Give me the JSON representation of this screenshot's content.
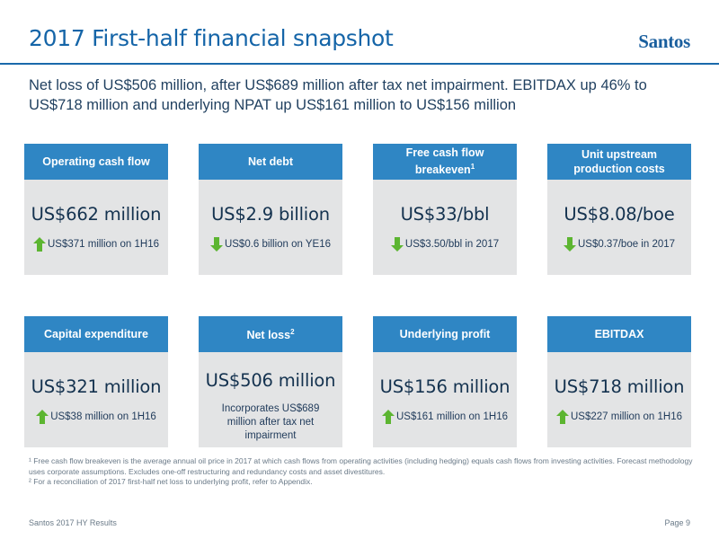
{
  "header": {
    "title": "2017 First-half financial snapshot",
    "logo_text": "Santos"
  },
  "subtitle": "Net loss of US$506 million, after US$689 million after tax net impairment. EBITDAX up 46% to US$718 million and underlying NPAT up US$161 million to US$156 million",
  "cards_row1": [
    {
      "heading": "Operating cash flow",
      "sup": "",
      "value": "US$662 million",
      "direction": "up",
      "change": "US$371 million on 1H16"
    },
    {
      "heading": "Net debt",
      "sup": "",
      "value": "US$2.9 billion",
      "direction": "down",
      "change": "US$0.6 billion on YE16"
    },
    {
      "heading": "Free cash flow breakeven",
      "sup": "1",
      "value": "US$33/bbl",
      "direction": "down",
      "change": "US$3.50/bbl in 2017"
    },
    {
      "heading": "Unit upstream production costs",
      "sup": "",
      "value": "US$8.08/boe",
      "direction": "down",
      "change": "US$0.37/boe in 2017"
    }
  ],
  "cards_row2": [
    {
      "heading": "Capital expenditure",
      "sup": "",
      "value": "US$321 million",
      "direction": "up",
      "change": "US$38 million on 1H16"
    },
    {
      "heading": "Net loss",
      "sup": "2",
      "value": "US$506 million",
      "direction": "none",
      "note": "Incorporates US$689 million after tax net impairment"
    },
    {
      "heading": "Underlying profit",
      "sup": "",
      "value": "US$156 million",
      "direction": "up",
      "change": "US$161 million on 1H16"
    },
    {
      "heading": "EBITDAX",
      "sup": "",
      "value": "US$718 million",
      "direction": "up",
      "change": "US$227 million on 1H16"
    }
  ],
  "footnotes": [
    "¹ Free cash flow breakeven is the average annual oil price in 2017 at which cash flows from operating activities (including hedging) equals cash flows from investing activities. Forecast methodology uses corporate assumptions. Excludes one-off restructuring and redundancy costs and asset divestitures.",
    "² For a reconciliation of 2017 first-half net loss to underlying profit, refer to Appendix."
  ],
  "footer": {
    "left": "Santos 2017 HY Results",
    "right": "Page 9"
  },
  "colors": {
    "accent": "#2f86c4",
    "title": "#1565a8",
    "card_bg": "#e3e4e5",
    "arrow_green": "#5cb531"
  },
  "icons": {
    "up": "arrow-up-icon",
    "down": "arrow-down-icon"
  }
}
